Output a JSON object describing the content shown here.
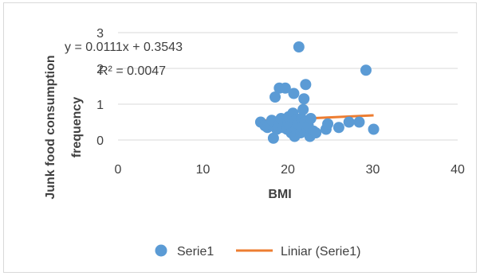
{
  "chart_data": {
    "type": "scatter",
    "xlabel": "BMI",
    "ylabel": [
      "Junk food consumption",
      "frequency"
    ],
    "xlim": [
      0,
      40
    ],
    "ylim": [
      0,
      3
    ],
    "xticks": [
      "0",
      "10",
      "20",
      "30",
      "40"
    ],
    "yticks": [
      "0",
      "1",
      "2",
      "3"
    ],
    "grid": "horizontal",
    "legend_position": "bottom",
    "series": [
      {
        "name": "Serie1",
        "kind": "points",
        "color": "#5b9bd5",
        "points": [
          [
            16.8,
            0.5
          ],
          [
            17.3,
            0.4
          ],
          [
            17.6,
            0.35
          ],
          [
            17.9,
            0.45
          ],
          [
            18.1,
            0.55
          ],
          [
            18.3,
            0.05
          ],
          [
            18.5,
            1.2
          ],
          [
            18.7,
            0.3
          ],
          [
            18.9,
            0.4
          ],
          [
            19.0,
            1.45
          ],
          [
            19.2,
            0.6
          ],
          [
            19.4,
            0.35
          ],
          [
            19.6,
            0.45
          ],
          [
            19.7,
            1.45
          ],
          [
            19.9,
            0.3
          ],
          [
            20.0,
            0.5
          ],
          [
            20.1,
            0.65
          ],
          [
            20.3,
            0.4
          ],
          [
            20.4,
            0.2
          ],
          [
            20.6,
            0.75
          ],
          [
            20.7,
            1.3
          ],
          [
            20.8,
            0.1
          ],
          [
            20.9,
            0.55
          ],
          [
            21.0,
            0.3
          ],
          [
            21.2,
            0.45
          ],
          [
            21.3,
            2.6
          ],
          [
            21.5,
            0.2
          ],
          [
            21.6,
            0.6
          ],
          [
            21.7,
            0.35
          ],
          [
            21.8,
            0.85
          ],
          [
            21.9,
            1.15
          ],
          [
            22.0,
            0.5
          ],
          [
            22.1,
            1.55
          ],
          [
            22.3,
            0.3
          ],
          [
            22.4,
            0.4
          ],
          [
            22.6,
            0.1
          ],
          [
            22.7,
            0.6
          ],
          [
            23.0,
            0.25
          ],
          [
            23.3,
            0.2
          ],
          [
            24.5,
            0.3
          ],
          [
            24.7,
            0.45
          ],
          [
            26.0,
            0.35
          ],
          [
            27.2,
            0.5
          ],
          [
            28.4,
            0.5
          ],
          [
            29.2,
            1.95
          ],
          [
            30.1,
            0.3
          ]
        ]
      },
      {
        "name": "Liniar (Serie1)",
        "kind": "trendline",
        "color": "#ed7d31",
        "x_range": [
          16.8,
          30.1
        ],
        "slope": 0.0111,
        "intercept": 0.3543
      }
    ],
    "annotations": {
      "equation": "y = 0.0111x + 0.3543",
      "r_squared": "R² = 0.0047"
    }
  }
}
